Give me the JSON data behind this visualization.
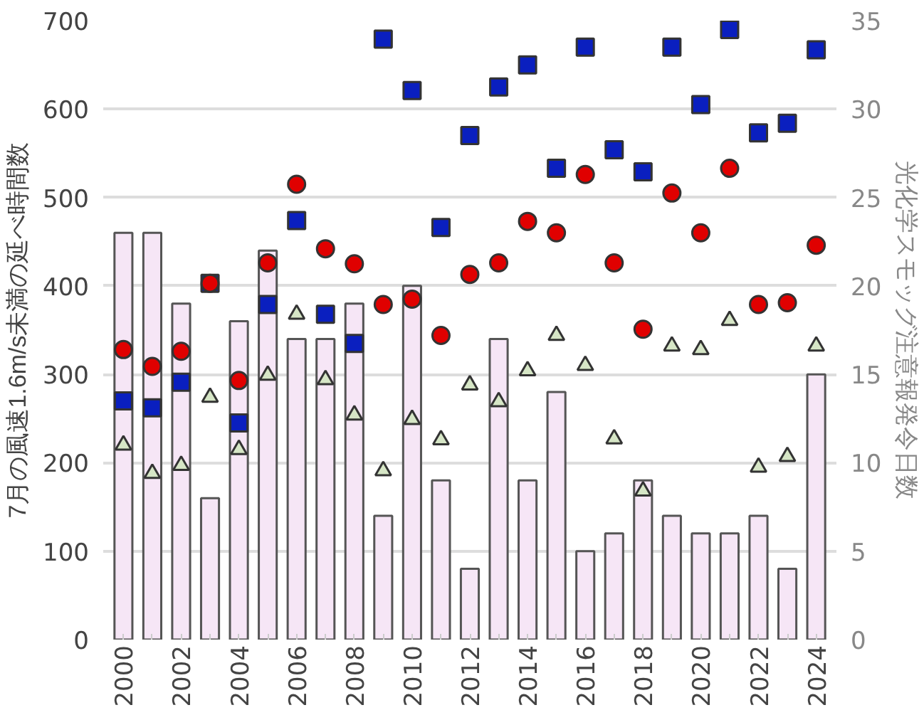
{
  "chart_data": {
    "type": "bar",
    "ylabel": "7月の風速1.6m/s未満の延べ時間数",
    "y2label": "光化学スモッグ注意報発令日数",
    "categories": [
      "2000",
      null,
      "2002",
      null,
      "2004",
      null,
      "2006",
      null,
      "2008",
      null,
      "2010",
      null,
      "2012",
      null,
      "2014",
      null,
      "2016",
      null,
      "2018",
      null,
      "2020",
      null,
      "2022",
      null,
      "2024"
    ],
    "series": [
      {
        "axis": "y2",
        "color": "#f6e6f6",
        "values": [
          23,
          23,
          19,
          8,
          18,
          22,
          17,
          17,
          19,
          7,
          20,
          9,
          4,
          17,
          9,
          14,
          5,
          6,
          9,
          7,
          6,
          6,
          7,
          4,
          15
        ]
      },
      {
        "type": "scatter",
        "marker": "triangle",
        "color": "#d6e6c6",
        "values": [
          220,
          188,
          197,
          274,
          215,
          299,
          368,
          294,
          254,
          191,
          249,
          226,
          288,
          269,
          304,
          344,
          310,
          227,
          168,
          332,
          328,
          361,
          195,
          207,
          332
        ]
      },
      {
        "type": "scatter",
        "marker": "square",
        "color": "#0a1fbf",
        "values": [
          270,
          262,
          291,
          403,
          245,
          379,
          474,
          368,
          335,
          679,
          621,
          466,
          570,
          625,
          650,
          533,
          670,
          554,
          529,
          670,
          605,
          690,
          573,
          584,
          667
        ]
      },
      {
        "type": "scatter",
        "marker": "circle",
        "color": "#e00000",
        "values": [
          328,
          309,
          326,
          403,
          293,
          426,
          515,
          442,
          425,
          379,
          385,
          344,
          413,
          426,
          473,
          460,
          526,
          426,
          351,
          505,
          460,
          533,
          379,
          381,
          446
        ]
      }
    ],
    "ylim": [
      0,
      700
    ],
    "yticks": [
      0,
      100,
      200,
      300,
      400,
      500,
      600,
      700
    ],
    "y2lim": [
      0,
      35
    ],
    "y2ticks": [
      0,
      5,
      10,
      15,
      20,
      25,
      30,
      35
    ],
    "grid": "y"
  }
}
